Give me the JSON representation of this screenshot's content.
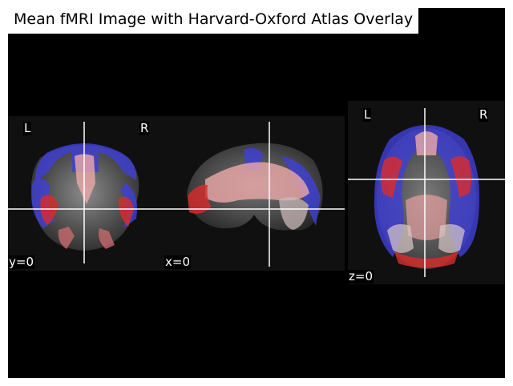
{
  "title": "Mean fMRI Image with Harvard-Oxford Atlas Overlay",
  "views": {
    "coronal": {
      "left_label": "L",
      "right_label": "R",
      "coord_label": "y=0"
    },
    "sagittal": {
      "coord_label": "x=0"
    },
    "axial": {
      "left_label": "L",
      "right_label": "R",
      "coord_label": "z=0"
    }
  },
  "colors": {
    "background": "#000000",
    "panel": "#101010",
    "overlay_red": "#d82c2c",
    "overlay_blue": "#3f3fd6",
    "overlay_pink": "#e9a7a7",
    "crosshair": "#ffffff"
  }
}
